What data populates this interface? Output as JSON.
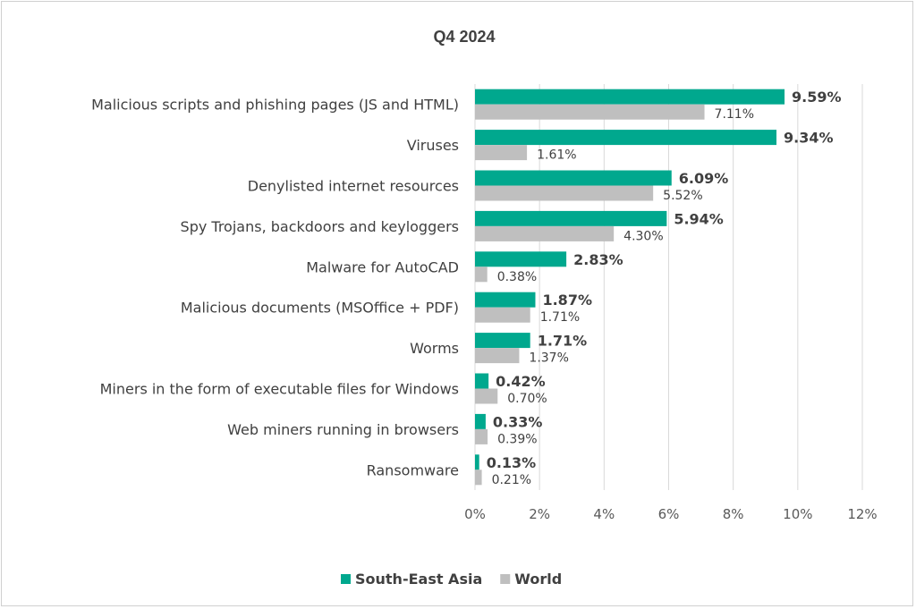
{
  "chart_data": {
    "type": "bar",
    "orientation": "horizontal",
    "title": "Q4 2024",
    "categories": [
      "Malicious scripts and phishing pages (JS and HTML)",
      "Viruses",
      "Denylisted internet resources",
      "Spy Trojans, backdoors and keyloggers",
      "Malware for AutoCAD",
      "Malicious documents (MSOffice + PDF)",
      "Worms",
      "Miners in the form of executable files for Windows",
      "Web miners running in browsers",
      "Ransomware"
    ],
    "series": [
      {
        "name": "South-East Asia",
        "color": "#00a88e",
        "values": [
          9.59,
          9.34,
          6.09,
          5.94,
          2.83,
          1.87,
          1.71,
          0.42,
          0.33,
          0.13
        ],
        "labels": [
          "9.59%",
          "9.34%",
          "6.09%",
          "5.94%",
          "2.83%",
          "1.87%",
          "1.71%",
          "0.42%",
          "0.33%",
          "0.13%"
        ]
      },
      {
        "name": "World",
        "color": "#bfbfbf",
        "values": [
          7.11,
          1.61,
          5.52,
          4.3,
          0.38,
          1.71,
          1.37,
          0.7,
          0.39,
          0.21
        ],
        "labels": [
          "7.11%",
          "1.61%",
          "5.52%",
          "4.30%",
          "0.38%",
          "1.71%",
          "1.37%",
          "0.70%",
          "0.39%",
          "0.21%"
        ]
      }
    ],
    "xlim": [
      0,
      12
    ],
    "xticks": [
      0,
      2,
      4,
      6,
      8,
      10,
      12
    ],
    "xtick_labels": [
      "0%",
      "2%",
      "4%",
      "6%",
      "8%",
      "10%",
      "12%"
    ],
    "grid": "vertical",
    "legend": "bottom",
    "gridline_color": "#d9d9d9"
  }
}
